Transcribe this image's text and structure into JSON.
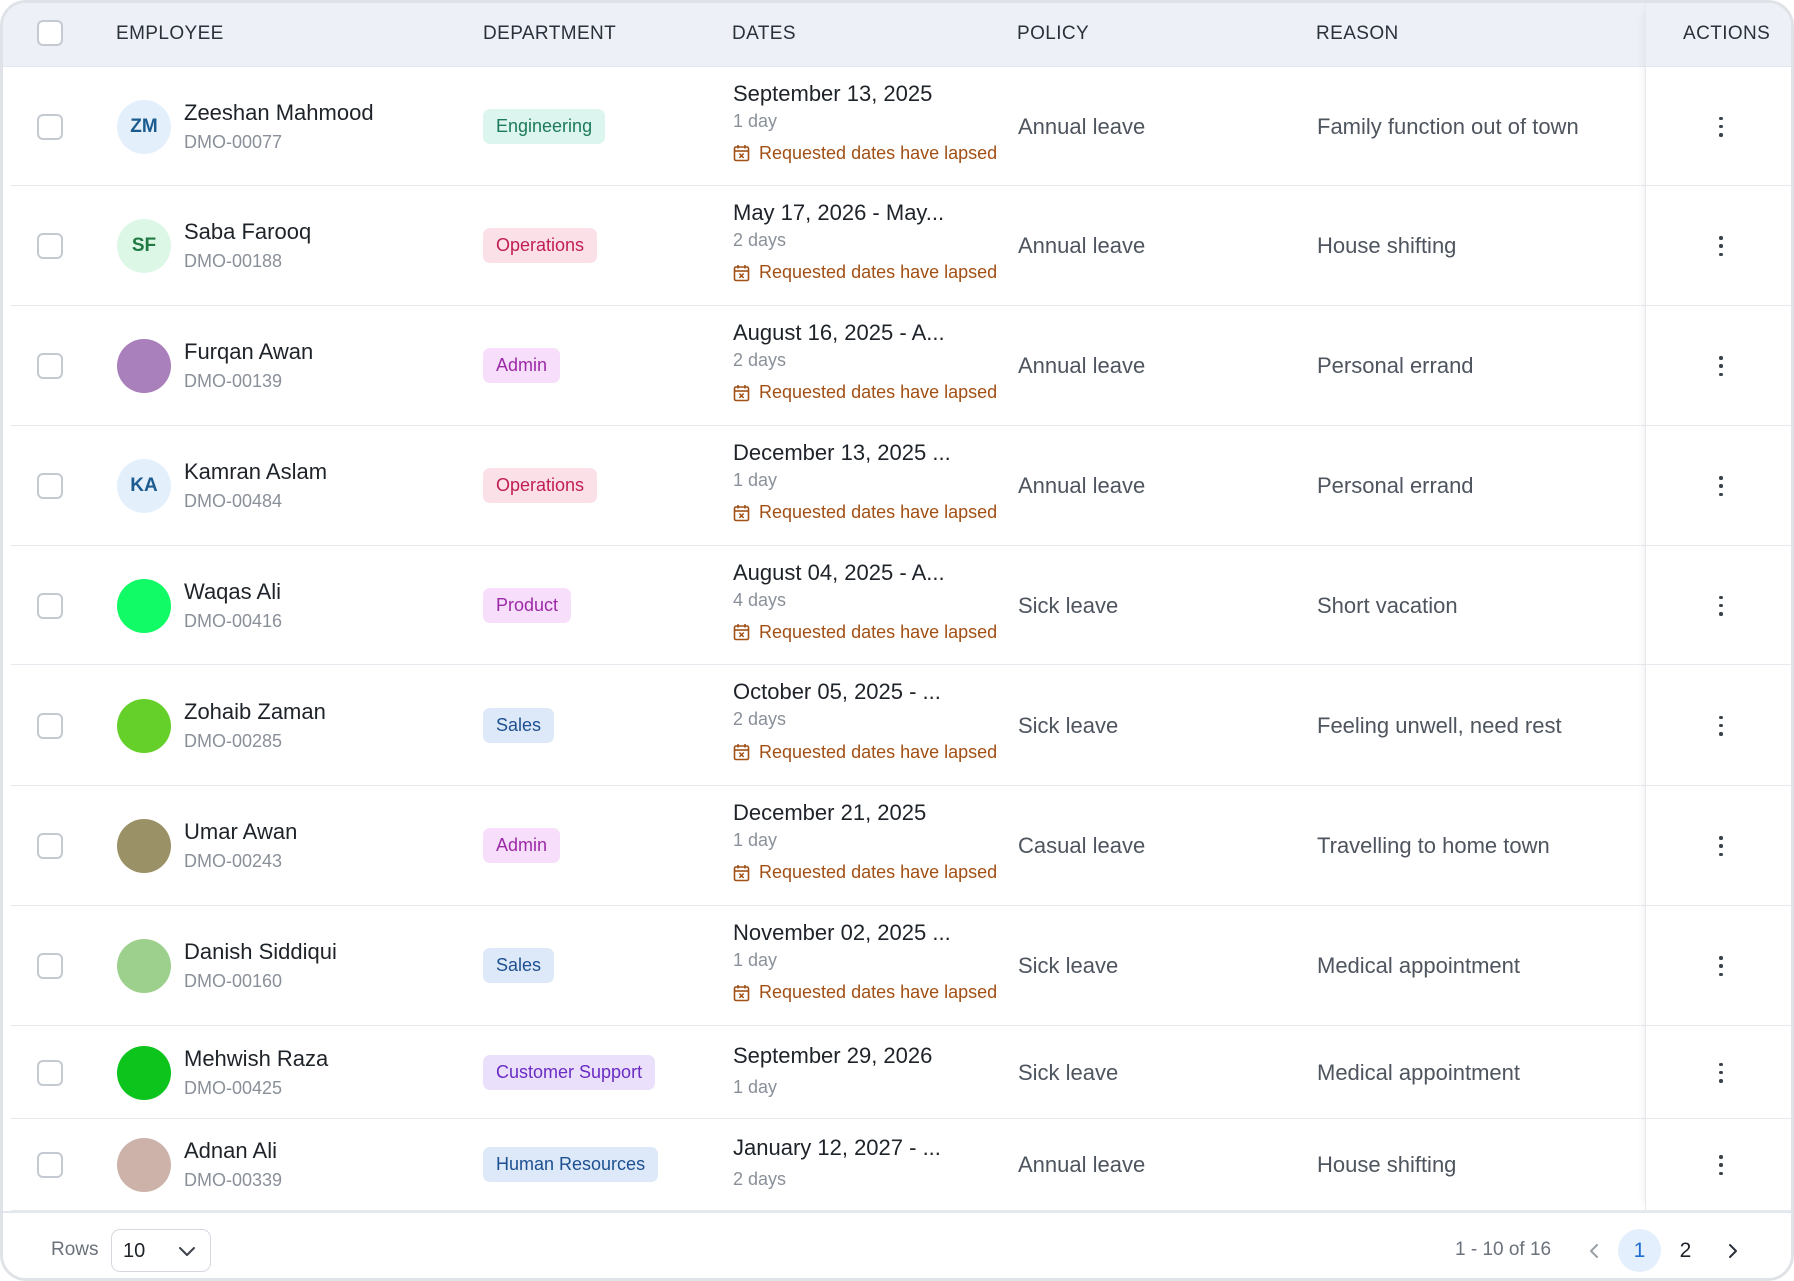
{
  "columns": {
    "employee": "EMPLOYEE",
    "department": "DEPARTMENT",
    "dates": "DATES",
    "policy": "POLICY",
    "reason": "REASON",
    "actions": "ACTIONS"
  },
  "icons": {
    "kebab": "vertical-ellipsis-icon",
    "calendar": "calendar-x-icon",
    "chevron": "chevron-down-icon"
  },
  "colors": {
    "lapse_text": "#a14f14",
    "active_page_bg": "#e3effc",
    "active_page_text": "#1f6fd1"
  },
  "rows": [
    {
      "initials": "ZM",
      "avatar_color": "#e3f0fb",
      "initials_color": "#1c5b8f",
      "name": "Zeeshan Mahmood",
      "id": "DMO-00077",
      "dept": "Engineering",
      "dept_bg": "#dcf5ee",
      "dept_fg": "#1d7a5a",
      "date": "September 13, 2025",
      "days": "1 day",
      "lapse": "Requested dates have lapsed",
      "policy": "Annual leave",
      "reason": "Family function out of town"
    },
    {
      "initials": "SF",
      "avatar_color": "#dcf7e6",
      "initials_color": "#1f7a43",
      "name": "Saba Farooq",
      "id": "DMO-00188",
      "dept": "Operations",
      "dept_bg": "#fbe0e8",
      "dept_fg": "#c01d55",
      "date": "May 17, 2026 - May...",
      "days": "2 days",
      "lapse": "Requested dates have lapsed",
      "policy": "Annual leave",
      "reason": "House shifting"
    },
    {
      "initials": "",
      "avatar_color": "#a97fbc",
      "initials_color": "#ffffff",
      "name": "Furqan Awan",
      "id": "DMO-00139",
      "dept": "Admin",
      "dept_bg": "#f7defa",
      "dept_fg": "#9c2aa8",
      "date": "August 16, 2025 - A...",
      "days": "2 days",
      "lapse": "Requested dates have lapsed",
      "policy": "Annual leave",
      "reason": "Personal errand"
    },
    {
      "initials": "KA",
      "avatar_color": "#e3f0fb",
      "initials_color": "#1c5b8f",
      "name": "Kamran Aslam",
      "id": "DMO-00484",
      "dept": "Operations",
      "dept_bg": "#fbe0e8",
      "dept_fg": "#c01d55",
      "date": "December 13, 2025 ...",
      "days": "1 day",
      "lapse": "Requested dates have lapsed",
      "policy": "Annual leave",
      "reason": "Personal errand"
    },
    {
      "initials": "",
      "avatar_color": "#10fb66",
      "initials_color": "#ffffff",
      "name": "Waqas Ali",
      "id": "DMO-00416",
      "dept": "Product",
      "dept_bg": "#f7defa",
      "dept_fg": "#9c2aa8",
      "date": "August 04, 2025 - A...",
      "days": "4 days",
      "lapse": "Requested dates have lapsed",
      "policy": "Sick leave",
      "reason": "Short vacation"
    },
    {
      "initials": "",
      "avatar_color": "#66d02a",
      "initials_color": "#ffffff",
      "name": "Zohaib Zaman",
      "id": "DMO-00285",
      "dept": "Sales",
      "dept_bg": "#dde9f8",
      "dept_fg": "#1d4f91",
      "date": "October 05, 2025 - ...",
      "days": "2 days",
      "lapse": "Requested dates have lapsed",
      "policy": "Sick leave",
      "reason": "Feeling unwell, need rest"
    },
    {
      "initials": "",
      "avatar_color": "#9b9166",
      "initials_color": "#ffffff",
      "name": "Umar Awan",
      "id": "DMO-00243",
      "dept": "Admin",
      "dept_bg": "#f7defa",
      "dept_fg": "#9c2aa8",
      "date": "December 21, 2025",
      "days": "1 day",
      "lapse": "Requested dates have lapsed",
      "policy": "Casual leave",
      "reason": "Travelling to home town"
    },
    {
      "initials": "",
      "avatar_color": "#9dd08c",
      "initials_color": "#ffffff",
      "name": "Danish Siddiqui",
      "id": "DMO-00160",
      "dept": "Sales",
      "dept_bg": "#dde9f8",
      "dept_fg": "#1d4f91",
      "date": "November 02, 2025 ...",
      "days": "1 day",
      "lapse": "Requested dates have lapsed",
      "policy": "Sick leave",
      "reason": "Medical appointment"
    },
    {
      "initials": "",
      "avatar_color": "#0cc41c",
      "initials_color": "#ffffff",
      "name": "Mehwish Raza",
      "id": "DMO-00425",
      "dept": "Customer Support",
      "dept_bg": "#ebe0fb",
      "dept_fg": "#6a2bc2",
      "date": "September 29, 2026",
      "days": "1 day",
      "lapse": "",
      "policy": "Sick leave",
      "reason": "Medical appointment"
    },
    {
      "initials": "",
      "avatar_color": "#cdb2aa",
      "initials_color": "#ffffff",
      "name": "Adnan Ali",
      "id": "DMO-00339",
      "dept": "Human Resources",
      "dept_bg": "#dde9f8",
      "dept_fg": "#1d4f91",
      "date": "January 12, 2027 - ...",
      "days": "2 days",
      "lapse": "",
      "policy": "Annual leave",
      "reason": "House shifting"
    }
  ],
  "footer": {
    "rows_label": "Rows",
    "rows_value": "10",
    "range": "1 - 10 of 16",
    "pages": [
      "1",
      "2"
    ],
    "current_page": "1"
  }
}
